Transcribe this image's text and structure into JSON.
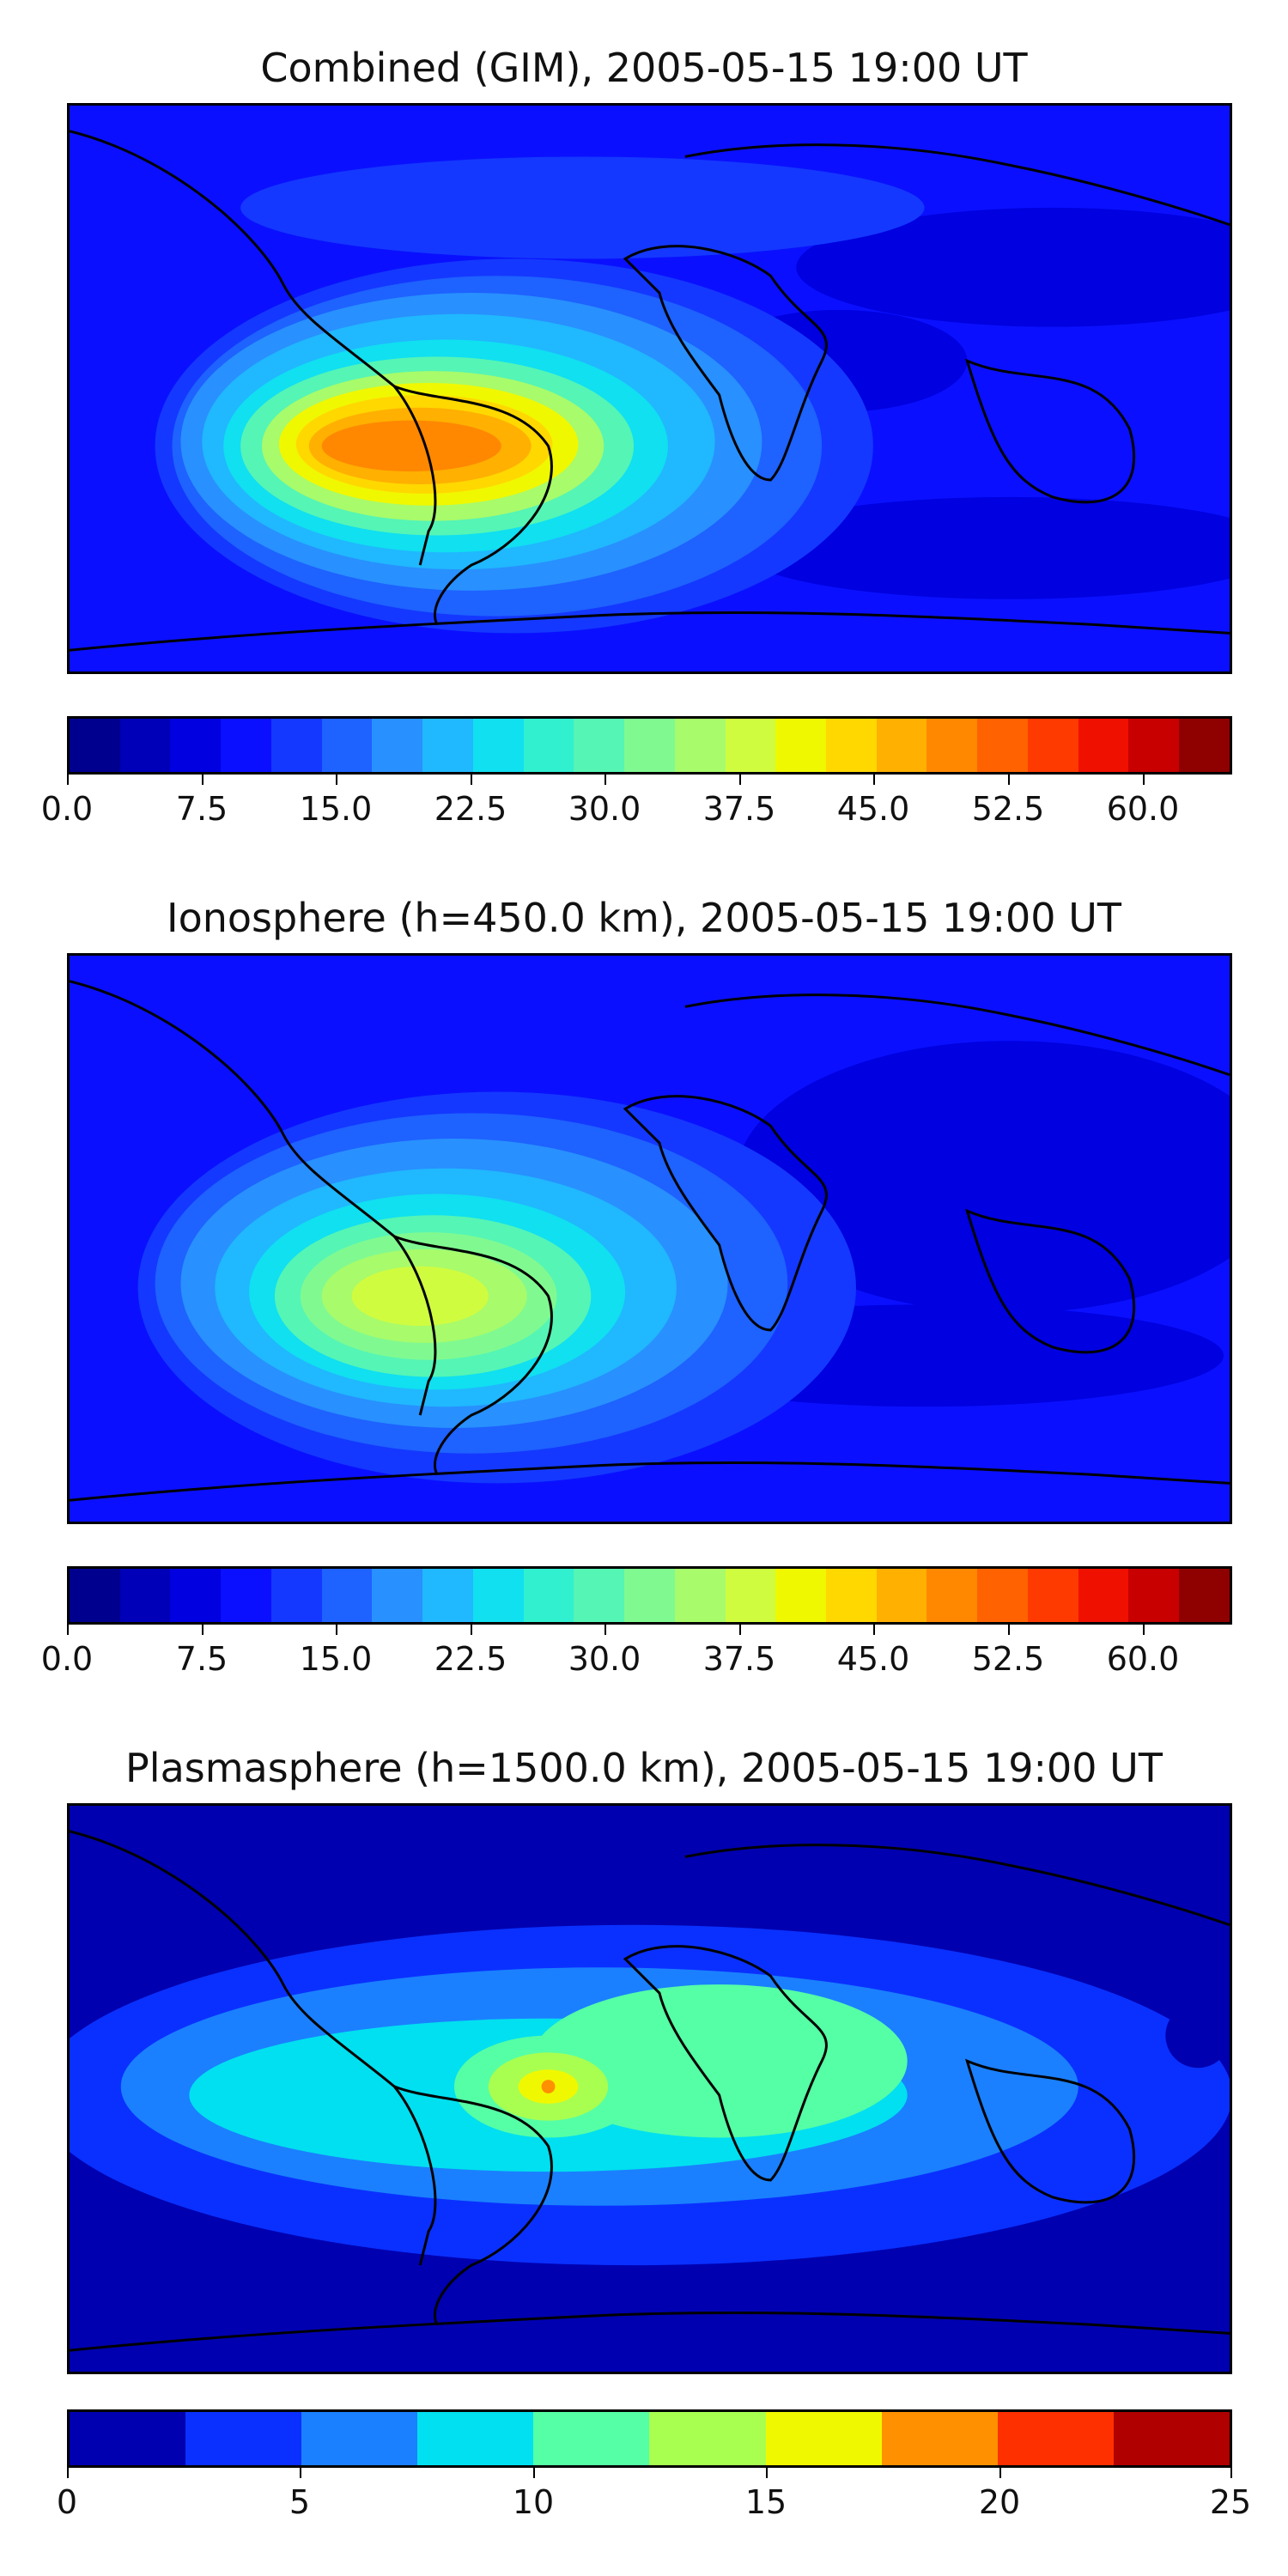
{
  "panels": [
    {
      "title": "Combined (GIM), 2005-05-15 19:00 UT",
      "colorbar": {
        "colors": [
          "#00008f",
          "#0000b8",
          "#0000e0",
          "#0a10ff",
          "#1438ff",
          "#1e62ff",
          "#2890ff",
          "#20b8ff",
          "#10e0f0",
          "#30f0d0",
          "#55f5b5",
          "#80fa90",
          "#a8fb6a",
          "#d0fc40",
          "#f0f800",
          "#ffd800",
          "#ffb000",
          "#ff8800",
          "#ff6200",
          "#ff3a00",
          "#f01000",
          "#c80000",
          "#8f0000"
        ],
        "ticks": [
          {
            "label": "0.0",
            "frac": 0.0
          },
          {
            "label": "7.5",
            "frac": 0.1154
          },
          {
            "label": "15.0",
            "frac": 0.2308
          },
          {
            "label": "22.5",
            "frac": 0.3462
          },
          {
            "label": "30.0",
            "frac": 0.4615
          },
          {
            "label": "37.5",
            "frac": 0.5769
          },
          {
            "label": "45.0",
            "frac": 0.6923
          },
          {
            "label": "52.5",
            "frac": 0.8077
          },
          {
            "label": "60.0",
            "frac": 0.9231
          }
        ]
      }
    },
    {
      "title": "Ionosphere  (h=450.0 km), 2005-05-15 19:00 UT",
      "colorbar": {
        "colors": [
          "#00008f",
          "#0000b8",
          "#0000e0",
          "#0a10ff",
          "#1438ff",
          "#1e62ff",
          "#2890ff",
          "#20b8ff",
          "#10e0f0",
          "#30f0d0",
          "#55f5b5",
          "#80fa90",
          "#a8fb6a",
          "#d0fc40",
          "#f0f800",
          "#ffd800",
          "#ffb000",
          "#ff8800",
          "#ff6200",
          "#ff3a00",
          "#f01000",
          "#c80000",
          "#8f0000"
        ],
        "ticks": [
          {
            "label": "0.0",
            "frac": 0.0
          },
          {
            "label": "7.5",
            "frac": 0.1154
          },
          {
            "label": "15.0",
            "frac": 0.2308
          },
          {
            "label": "22.5",
            "frac": 0.3462
          },
          {
            "label": "30.0",
            "frac": 0.4615
          },
          {
            "label": "37.5",
            "frac": 0.5769
          },
          {
            "label": "45.0",
            "frac": 0.6923
          },
          {
            "label": "52.5",
            "frac": 0.8077
          },
          {
            "label": "60.0",
            "frac": 0.9231
          }
        ]
      }
    },
    {
      "title": "Plasmasphere (h=1500.0 km), 2005-05-15 19:00 UT",
      "colorbar": {
        "colors": [
          "#0000b0",
          "#0a30ff",
          "#1a80ff",
          "#00e0f0",
          "#55ffa5",
          "#a8ff50",
          "#f0f800",
          "#ff9000",
          "#ff3000",
          "#b00000"
        ],
        "ticks": [
          {
            "label": "0",
            "frac": 0.0
          },
          {
            "label": "5",
            "frac": 0.2
          },
          {
            "label": "10",
            "frac": 0.4
          },
          {
            "label": "15",
            "frac": 0.6
          },
          {
            "label": "20",
            "frac": 0.8
          },
          {
            "label": "25",
            "frac": 1.0
          }
        ]
      }
    }
  ]
}
